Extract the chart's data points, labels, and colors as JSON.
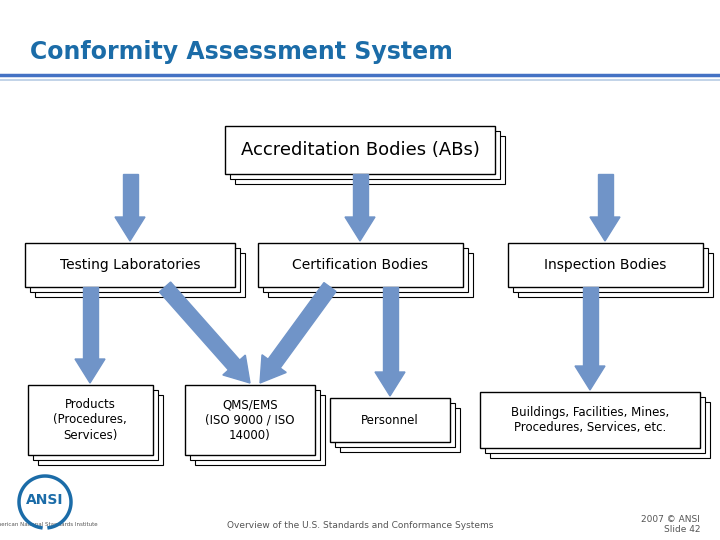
{
  "title": "Conformity Assessment System",
  "title_color": "#1B6CA8",
  "background_color": "#FFFFFF",
  "header_line_color1": "#4472C4",
  "header_line_color2": "#B8CCE4",
  "arrow_color": "#7094C8",
  "box_border_color": "#000000",
  "box_fill_color": "#FFFFFF",
  "footer_text": "Overview of the U.S. Standards and Conformance Systems",
  "footer_right": "2007 © ANSI\nSlide 42",
  "ab_label": "Accreditation Bodies (ABs)",
  "tl_label": "Testing Laboratories",
  "cb_label": "Certification Bodies",
  "ib_label": "Inspection Bodies",
  "pr_label": "Products\n(Procedures,\nServices)",
  "qm_label": "QMS/EMS\n(ISO 9000 / ISO\n14000)",
  "pe_label": "Personnel",
  "bf_label": "Buildings, Facilities, Mines,\nProcedures, Services, etc."
}
